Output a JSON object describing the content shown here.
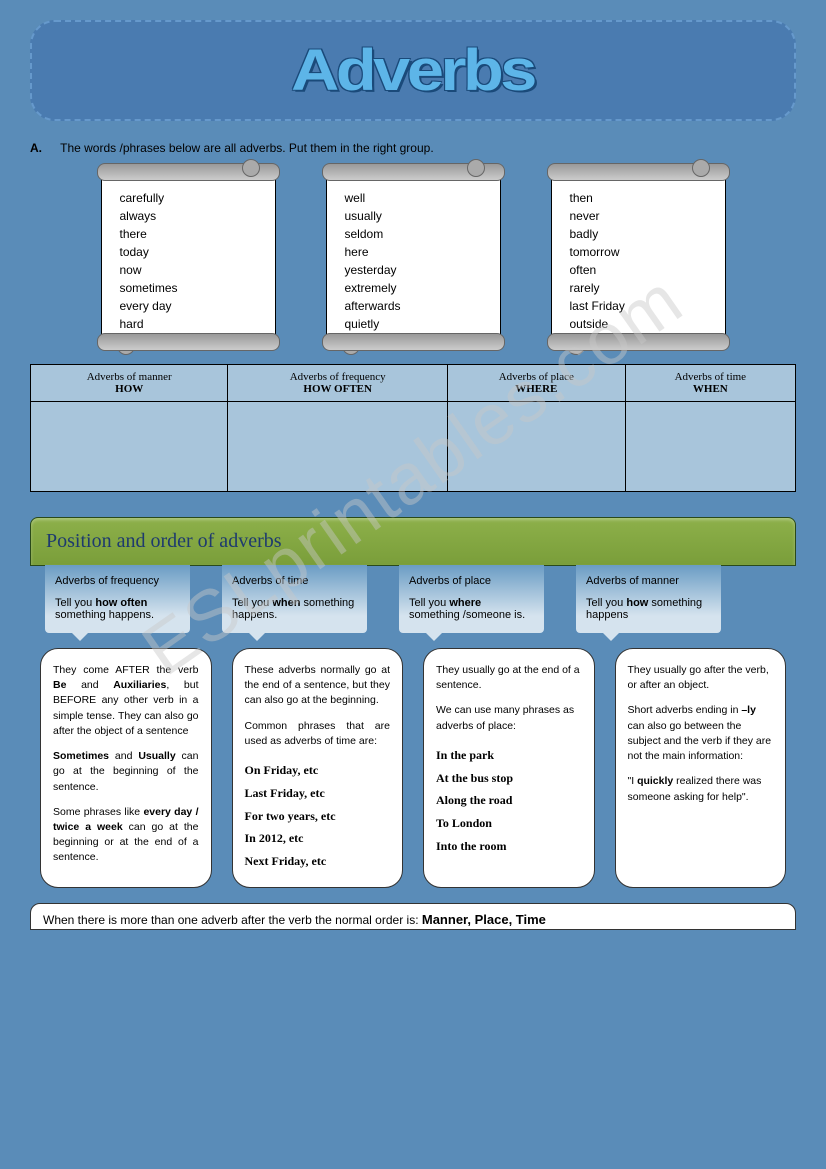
{
  "title": "Adverbs",
  "watermark": "ESLprintables.com",
  "instruction": {
    "letter": "A.",
    "text": "The words /phrases below are all adverbs. Put them in the right group."
  },
  "scrolls": [
    [
      "carefully",
      "always",
      "there",
      "today",
      "now",
      "sometimes",
      "every day",
      "hard"
    ],
    [
      "well",
      "usually",
      "seldom",
      "here",
      "yesterday",
      "extremely",
      "afterwards",
      "quietly"
    ],
    [
      "then",
      "never",
      "badly",
      "tomorrow",
      "often",
      "rarely",
      "last Friday",
      "outside"
    ]
  ],
  "table_headers": [
    {
      "line1": "Adverbs of manner",
      "line2": "HOW"
    },
    {
      "line1": "Adverbs of frequency",
      "line2": "HOW OFTEN"
    },
    {
      "line1": "Adverbs of place",
      "line2": "WHERE"
    },
    {
      "line1": "Adverbs of time",
      "line2": "WHEN"
    }
  ],
  "section_header": "Position and order of adverbs",
  "tabs": [
    {
      "title": "Adverbs of frequency",
      "desc_pre": "Tell you ",
      "desc_bold": "how often",
      "desc_post": " something happens."
    },
    {
      "title": "Adverbs of time",
      "desc_pre": "Tell you ",
      "desc_bold": "when",
      "desc_post": " something happens."
    },
    {
      "title": "Adverbs of place",
      "desc_pre": "Tell you ",
      "desc_bold": "where",
      "desc_post": " something /someone is."
    },
    {
      "title": "Adverbs of manner",
      "desc_pre": "Tell you ",
      "desc_bold": "how",
      "desc_post": " something happens"
    }
  ],
  "details": {
    "freq": {
      "p1_a": "They come AFTER the verb ",
      "p1_b": "Be",
      "p1_c": " and ",
      "p1_d": "Auxiliaries",
      "p1_e": ", but BEFORE any other verb in a simple tense. They can also go after the object of a sentence",
      "p2_a": "Sometimes",
      "p2_b": " and ",
      "p2_c": "Usually",
      "p2_d": " can go at the beginning of the sentence.",
      "p3_a": "Some phrases like ",
      "p3_b": "every day / twice a week",
      "p3_c": " can go at the beginning or at the end of a sentence."
    },
    "time": {
      "p1": "These adverbs normally go at the end of a sentence, but they can also go at the beginning.",
      "p2": "Common phrases that are used as adverbs of time are:",
      "examples": [
        "On Friday, etc",
        "Last Friday, etc",
        "For two years, etc",
        "In 2012, etc",
        "Next Friday, etc"
      ]
    },
    "place": {
      "p1": "They usually go at the end of a sentence.",
      "p2": "We can use many phrases as adverbs of place:",
      "examples": [
        "In the park",
        "At the bus stop",
        "Along the road",
        "To London",
        "Into the room"
      ]
    },
    "manner": {
      "p1": "They usually go after the verb, or after an object.",
      "p2_a": "Short adverbs ending in ",
      "p2_b": "–ly",
      "p2_c": " can also go between the subject and the verb if they are not the main information:",
      "p3_a": "\"I ",
      "p3_b": "quickly",
      "p3_c": " realized there was someone asking for help\"."
    }
  },
  "footer": {
    "pre": "When there is more than one adverb after the verb the normal order is: ",
    "bold": "Manner, Place, Time"
  }
}
